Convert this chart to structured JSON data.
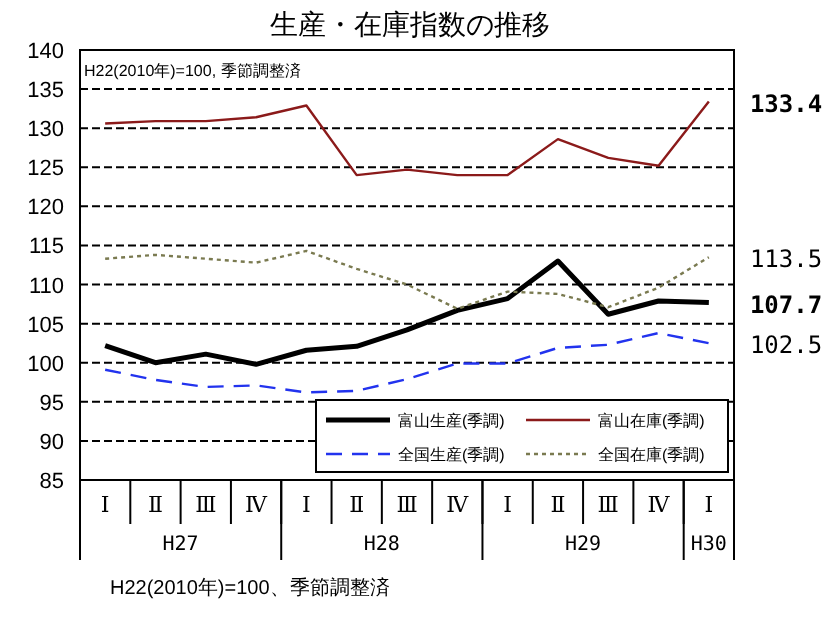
{
  "chart_data": {
    "type": "line",
    "title": "生産・在庫指数の推移",
    "categories": [
      "Ⅰ",
      "Ⅱ",
      "Ⅲ",
      "Ⅳ",
      "Ⅰ",
      "Ⅱ",
      "Ⅲ",
      "Ⅳ",
      "Ⅰ",
      "Ⅱ",
      "Ⅲ",
      "Ⅳ",
      "Ⅰ"
    ],
    "series": [
      {
        "name": "富山生産(季調)",
        "color": "#000000",
        "line_style": "solid",
        "values": [
          102.2,
          100.0,
          101.1,
          99.8,
          101.6,
          102.1,
          104.2,
          106.7,
          108.2,
          113.0,
          106.2,
          107.9,
          107.7
        ],
        "value_labels": [
          null,
          null,
          null,
          null,
          null,
          null,
          null,
          null,
          null,
          null,
          null,
          null,
          "107.7"
        ]
      },
      {
        "name": "富山在庫(季調)",
        "color": "#8b1a1a",
        "line_style": "solid",
        "values": [
          130.6,
          130.9,
          130.9,
          131.4,
          132.9,
          124.0,
          124.7,
          124.0,
          124.0,
          128.6,
          126.2,
          125.2,
          133.4
        ],
        "value_labels": [
          null,
          null,
          null,
          null,
          null,
          null,
          null,
          null,
          null,
          null,
          null,
          null,
          "133.4"
        ]
      },
      {
        "name": "全国生産(季調)",
        "color": "#2233ee",
        "line_style": "dashed",
        "values": [
          99.1,
          97.8,
          96.9,
          97.1,
          96.2,
          96.4,
          97.9,
          99.9,
          99.9,
          101.9,
          102.3,
          103.8,
          102.5
        ],
        "value_labels": [
          null,
          null,
          null,
          null,
          null,
          null,
          null,
          null,
          null,
          null,
          null,
          null,
          "102.5"
        ]
      },
      {
        "name": "全国在庫(季調)",
        "color": "#7a7a50",
        "line_style": "dotted",
        "values": [
          113.3,
          113.8,
          113.3,
          112.8,
          114.3,
          112.0,
          110.0,
          106.9,
          109.1,
          108.8,
          107.1,
          109.6,
          113.5
        ],
        "value_labels": [
          null,
          null,
          null,
          null,
          null,
          null,
          null,
          null,
          null,
          null,
          null,
          null,
          "113.5"
        ]
      }
    ],
    "ylim": [
      85,
      140
    ],
    "yticks": [
      85,
      90,
      95,
      100,
      105,
      110,
      115,
      120,
      125,
      130,
      135,
      140
    ],
    "grid": "y",
    "legend": "bottom right",
    "marker": "none",
    "annotations": [
      "H27",
      "H28",
      "H29",
      "H30",
      "H22(2010年)=100, 季節調整済",
      "H22(2010年)=100、季節調整済"
    ]
  }
}
